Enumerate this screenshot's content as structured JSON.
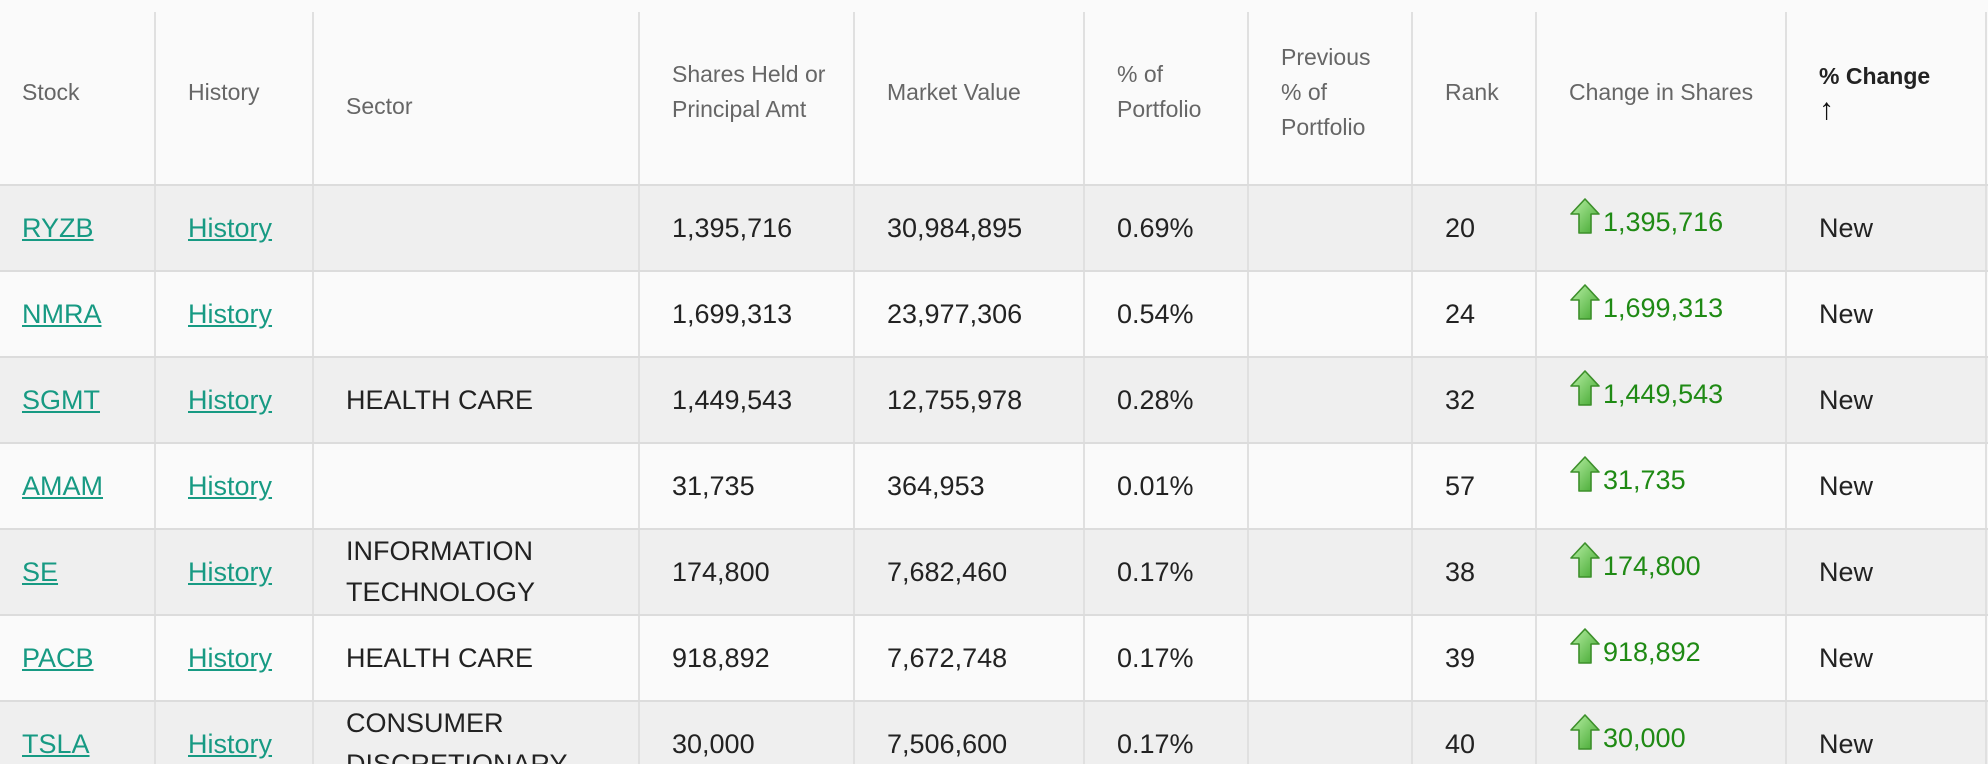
{
  "columns": [
    {
      "label": "Stock"
    },
    {
      "label": "History"
    },
    {
      "label": "Sector"
    },
    {
      "label": "Shares Held or Principal Amt"
    },
    {
      "label": "Market Value"
    },
    {
      "label": "% of Portfolio"
    },
    {
      "label": "Previous % of Portfolio"
    },
    {
      "label": "Rank"
    },
    {
      "label": "Change in Shares"
    },
    {
      "label": "% Change",
      "sort_icon": "↑"
    }
  ],
  "rows": [
    {
      "stock": "RYZB",
      "history": "History",
      "sector": "",
      "shares": "1,395,716",
      "market_value": "30,984,895",
      "pct_portfolio": "0.69%",
      "prev_pct": "",
      "rank": "20",
      "change": "1,395,716",
      "pct_change": "New"
    },
    {
      "stock": "NMRA",
      "history": "History",
      "sector": "",
      "shares": "1,699,313",
      "market_value": "23,977,306",
      "pct_portfolio": "0.54%",
      "prev_pct": "",
      "rank": "24",
      "change": "1,699,313",
      "pct_change": "New"
    },
    {
      "stock": "SGMT",
      "history": "History",
      "sector": "HEALTH CARE",
      "shares": "1,449,543",
      "market_value": "12,755,978",
      "pct_portfolio": "0.28%",
      "prev_pct": "",
      "rank": "32",
      "change": "1,449,543",
      "pct_change": "New"
    },
    {
      "stock": "AMAM",
      "history": "History",
      "sector": "",
      "shares": "31,735",
      "market_value": "364,953",
      "pct_portfolio": "0.01%",
      "prev_pct": "",
      "rank": "57",
      "change": "31,735",
      "pct_change": "New"
    },
    {
      "stock": "SE",
      "history": "History",
      "sector": "INFORMATION TECHNOLOGY",
      "shares": "174,800",
      "market_value": "7,682,460",
      "pct_portfolio": "0.17%",
      "prev_pct": "",
      "rank": "38",
      "change": "174,800",
      "pct_change": "New"
    },
    {
      "stock": "PACB",
      "history": "History",
      "sector": "HEALTH CARE",
      "shares": "918,892",
      "market_value": "7,672,748",
      "pct_portfolio": "0.17%",
      "prev_pct": "",
      "rank": "39",
      "change": "918,892",
      "pct_change": "New"
    },
    {
      "stock": "TSLA",
      "history": "History",
      "sector": "CONSUMER DISCRETIONARY",
      "shares": "30,000",
      "market_value": "7,506,600",
      "pct_portfolio": "0.17%",
      "prev_pct": "",
      "rank": "40",
      "change": "30,000",
      "pct_change": "New"
    }
  ],
  "icons": {
    "change_up": "green-up-arrow-icon"
  },
  "colors": {
    "link": "#179a83",
    "change_positive": "#1f8a14",
    "row_alt": "#efefef"
  }
}
